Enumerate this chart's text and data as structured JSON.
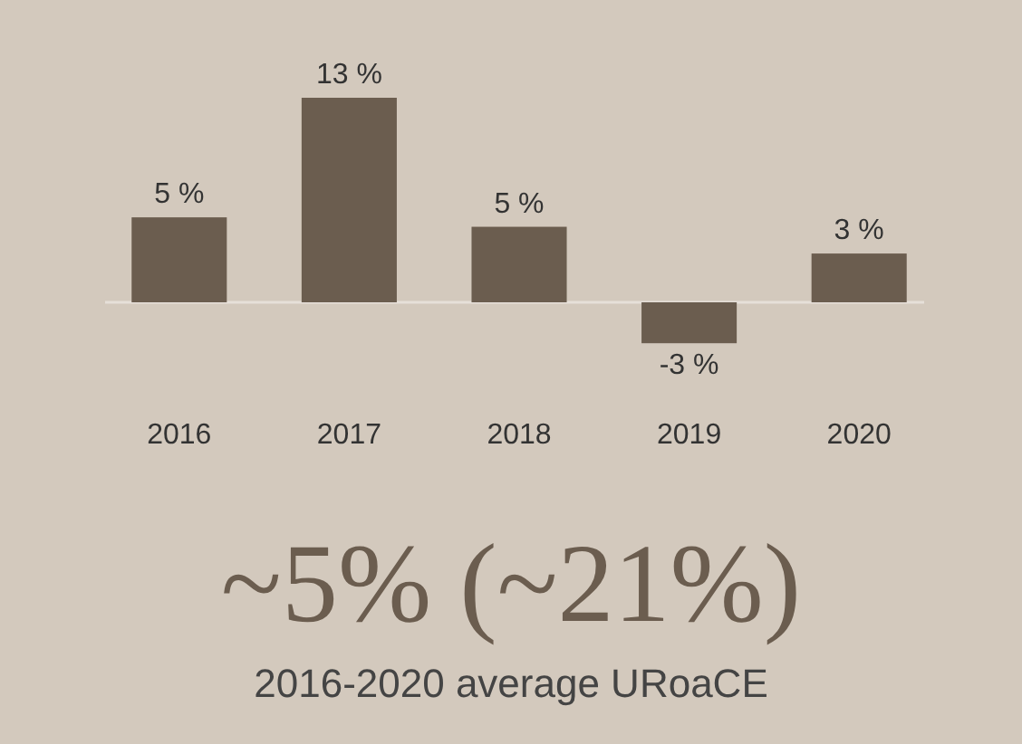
{
  "chart_data": {
    "type": "bar",
    "categories": [
      "2016",
      "2017",
      "2018",
      "2019",
      "2020"
    ],
    "values": [
      5.4,
      13,
      4.8,
      -2.6,
      3.1
    ],
    "value_labels": [
      "5 %",
      "13 %",
      "5 %",
      "-3 %",
      "3 %"
    ],
    "color": "#6b5d4f",
    "annotations": [
      "~5% (~21%)",
      "2016-2020 average URoaCE"
    ]
  }
}
